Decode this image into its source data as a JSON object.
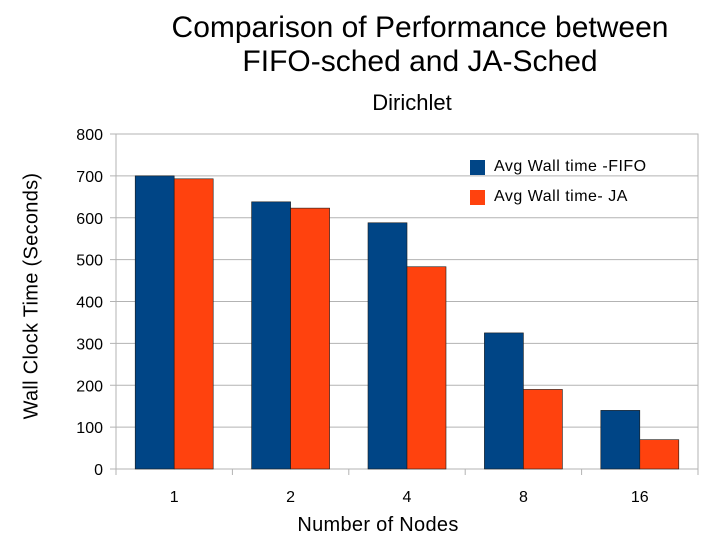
{
  "chart_data": {
    "type": "bar",
    "title_line1": "Comparison of Performance between",
    "title_line2": "FIFO-sched and JA-Sched",
    "subtitle": "Dirichlet",
    "xlabel": "Number of Nodes",
    "ylabel": "Wall Clock Time (Seconds)",
    "categories": [
      "1",
      "2",
      "4",
      "8",
      "16"
    ],
    "ylim": [
      0,
      800
    ],
    "yticks": [
      0,
      100,
      200,
      300,
      400,
      500,
      600,
      700,
      800
    ],
    "grid": true,
    "legend_position": "top-right",
    "series": [
      {
        "name": "Avg Wall time -FIFO",
        "color": "#004586",
        "values": [
          700,
          638,
          588,
          325,
          140
        ]
      },
      {
        "name": "Avg Wall time- JA",
        "color": "#ff420e",
        "values": [
          693,
          623,
          483,
          190,
          70
        ]
      }
    ]
  }
}
